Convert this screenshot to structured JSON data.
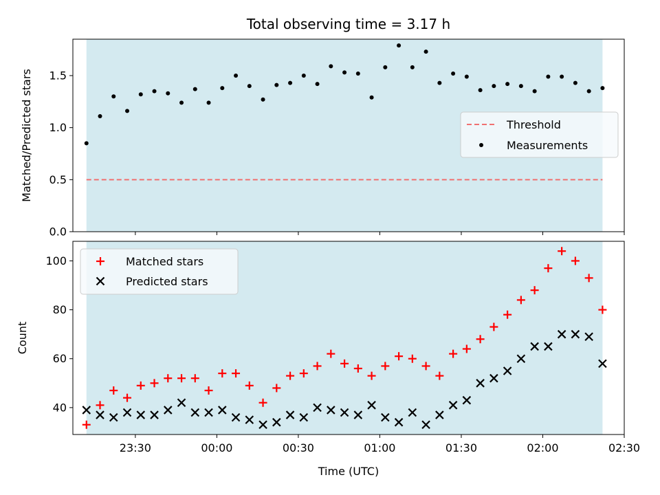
{
  "chart_data": [
    {
      "type": "scatter",
      "title": "Total observing time = 3.17 h",
      "xlabel": "",
      "ylabel": "Matched/Predicted stars",
      "xlim": [
        "23:07",
        "02:30"
      ],
      "ylim": [
        0,
        1.85
      ],
      "yticks": [
        {
          "value": 0.0,
          "label": "0.0"
        },
        {
          "value": 0.5,
          "label": "0.5"
        },
        {
          "value": 1.0,
          "label": "1.0"
        },
        {
          "value": 1.5,
          "label": "1.5"
        }
      ],
      "shaded_span": {
        "from": "23:12",
        "to": "02:22",
        "color": "#d4eaf0"
      },
      "threshold": {
        "name": "Threshold",
        "value": 0.5,
        "from": "23:12",
        "to": "02:22",
        "color": "#f07070"
      },
      "legend": {
        "position": "center-right",
        "entries": [
          "Threshold",
          "Measurements"
        ]
      },
      "series": [
        {
          "name": "Measurements",
          "marker": "dot",
          "color": "#000000",
          "x": [
            "23:12",
            "23:17",
            "23:22",
            "23:27",
            "23:32",
            "23:37",
            "23:42",
            "23:47",
            "23:52",
            "23:57",
            "00:02",
            "00:07",
            "00:12",
            "00:17",
            "00:22",
            "00:27",
            "00:32",
            "00:37",
            "00:42",
            "00:47",
            "00:52",
            "00:57",
            "01:02",
            "01:07",
            "01:12",
            "01:17",
            "01:22",
            "01:27",
            "01:32",
            "01:37",
            "01:42",
            "01:47",
            "01:52",
            "01:57",
            "02:02",
            "02:07",
            "02:12",
            "02:17",
            "02:22"
          ],
          "y": [
            0.85,
            1.11,
            1.3,
            1.16,
            1.32,
            1.35,
            1.33,
            1.24,
            1.37,
            1.24,
            1.38,
            1.5,
            1.4,
            1.27,
            1.41,
            1.43,
            1.5,
            1.42,
            1.59,
            1.53,
            1.52,
            1.29,
            1.58,
            1.79,
            1.58,
            1.73,
            1.43,
            1.52,
            1.49,
            1.36,
            1.4,
            1.42,
            1.4,
            1.35,
            1.49,
            1.49,
            1.43,
            1.35,
            1.38
          ]
        }
      ]
    },
    {
      "type": "scatter",
      "title": "",
      "xlabel": "Time (UTC)",
      "ylabel": "Count",
      "xlim": [
        "23:07",
        "02:30"
      ],
      "ylim": [
        29,
        108
      ],
      "yticks": [
        {
          "value": 40,
          "label": "40"
        },
        {
          "value": 60,
          "label": "60"
        },
        {
          "value": 80,
          "label": "80"
        },
        {
          "value": 100,
          "label": "100"
        }
      ],
      "xticks": [
        {
          "value": "23:30",
          "label": "23:30"
        },
        {
          "value": "00:00",
          "label": "00:00"
        },
        {
          "value": "00:30",
          "label": "00:30"
        },
        {
          "value": "01:00",
          "label": "01:00"
        },
        {
          "value": "01:30",
          "label": "01:30"
        },
        {
          "value": "02:00",
          "label": "02:00"
        },
        {
          "value": "02:30",
          "label": "02:30"
        }
      ],
      "shaded_span": {
        "from": "23:12",
        "to": "02:22",
        "color": "#d4eaf0"
      },
      "legend": {
        "position": "top-left",
        "entries": [
          "Matched stars",
          "Predicted stars"
        ]
      },
      "series": [
        {
          "name": "Matched stars",
          "marker": "plus",
          "color": "#ff0000",
          "x": [
            "23:12",
            "23:17",
            "23:22",
            "23:27",
            "23:32",
            "23:37",
            "23:42",
            "23:47",
            "23:52",
            "23:57",
            "00:02",
            "00:07",
            "00:12",
            "00:17",
            "00:22",
            "00:27",
            "00:32",
            "00:37",
            "00:42",
            "00:47",
            "00:52",
            "00:57",
            "01:02",
            "01:07",
            "01:12",
            "01:17",
            "01:22",
            "01:27",
            "01:32",
            "01:37",
            "01:42",
            "01:47",
            "01:52",
            "01:57",
            "02:02",
            "02:07",
            "02:12",
            "02:17",
            "02:22"
          ],
          "y": [
            33,
            41,
            47,
            44,
            49,
            50,
            52,
            52,
            52,
            47,
            54,
            54,
            49,
            42,
            48,
            53,
            54,
            57,
            62,
            58,
            56,
            53,
            57,
            61,
            60,
            57,
            53,
            62,
            64,
            68,
            73,
            78,
            84,
            88,
            97,
            104,
            100,
            93,
            80
          ]
        },
        {
          "name": "Predicted stars",
          "marker": "x",
          "color": "#000000",
          "x": [
            "23:12",
            "23:17",
            "23:22",
            "23:27",
            "23:32",
            "23:37",
            "23:42",
            "23:47",
            "23:52",
            "23:57",
            "00:02",
            "00:07",
            "00:12",
            "00:17",
            "00:22",
            "00:27",
            "00:32",
            "00:37",
            "00:42",
            "00:47",
            "00:52",
            "00:57",
            "01:02",
            "01:07",
            "01:12",
            "01:17",
            "01:22",
            "01:27",
            "01:32",
            "01:37",
            "01:42",
            "01:47",
            "01:52",
            "01:57",
            "02:02",
            "02:07",
            "02:12",
            "02:17",
            "02:22"
          ],
          "y": [
            39,
            37,
            36,
            38,
            37,
            37,
            39,
            42,
            38,
            38,
            39,
            36,
            35,
            33,
            34,
            37,
            36,
            40,
            39,
            38,
            37,
            41,
            36,
            34,
            38,
            33,
            37,
            41,
            43,
            50,
            52,
            55,
            60,
            65,
            65,
            70,
            70,
            69,
            58
          ]
        }
      ]
    }
  ]
}
